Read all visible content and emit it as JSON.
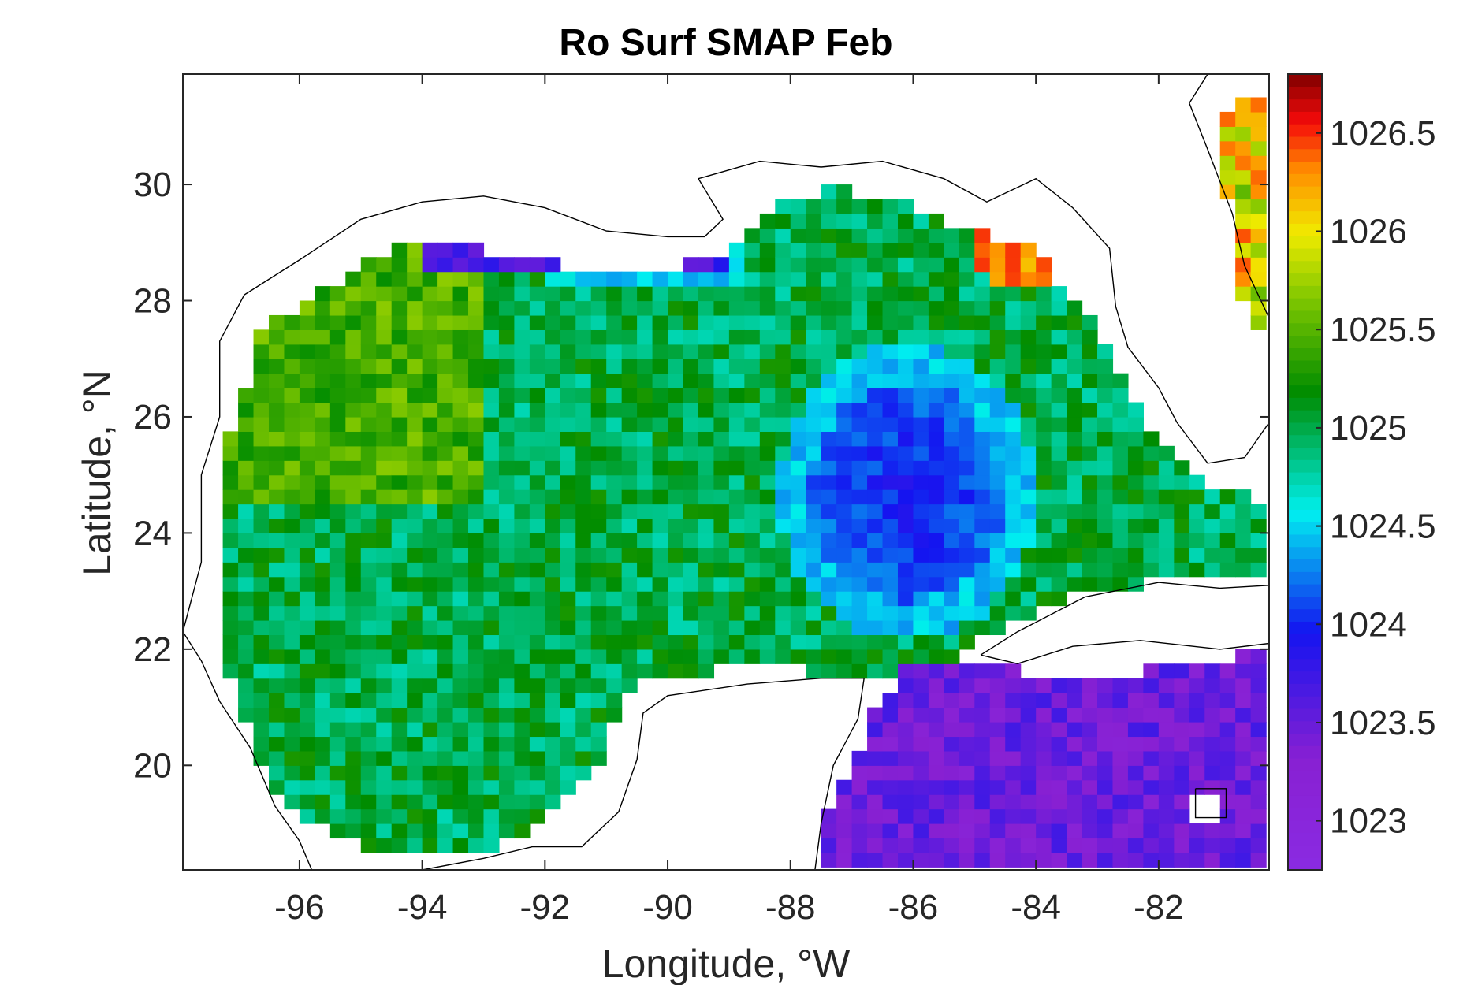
{
  "chart_data": {
    "type": "heatmap",
    "title": "Ro Surf SMAP Feb",
    "xlabel": "Longitude, °W",
    "ylabel": "Latitude, °N",
    "xlim": [
      -97.9,
      -80.2
    ],
    "ylim": [
      18.2,
      31.9
    ],
    "x_ticks": [
      -96,
      -94,
      -92,
      -90,
      -88,
      -86,
      -84,
      -82
    ],
    "x_tick_labels": [
      "-96",
      "-94",
      "-92",
      "-90",
      "-88",
      "-86",
      "-84",
      "-82"
    ],
    "y_ticks": [
      20,
      22,
      24,
      26,
      28,
      30
    ],
    "y_tick_labels": [
      "20",
      "22",
      "24",
      "26",
      "28",
      "30"
    ],
    "colorbar": {
      "range": [
        1022.75,
        1026.8
      ],
      "ticks": [
        1023,
        1023.5,
        1024,
        1024.5,
        1025,
        1025.5,
        1026,
        1026.5
      ],
      "tick_labels": [
        "1023",
        "1023.5",
        "1024",
        "1024.5",
        "1025",
        "1025.5",
        "1026",
        "1026.5"
      ],
      "colormap": "jet-like (purple-blue-cyan-green-yellow-red)"
    },
    "grid_resolution_deg": 0.25,
    "regions_mean_value": [
      {
        "region": "western and central Gulf interior",
        "value": 1025.0
      },
      {
        "region": "northwestern shelf",
        "value": 1025.5
      },
      {
        "region": "Loop Current core, eastern Gulf",
        "value": 1023.9
      },
      {
        "region": "Caribbean Sea",
        "value": 1023.4
      },
      {
        "region": "northeastern coast near -84",
        "value": 1026.4
      },
      {
        "region": "Atlantic east of Florida",
        "value": 1026.0
      }
    ],
    "grid": false,
    "legend": "none"
  }
}
